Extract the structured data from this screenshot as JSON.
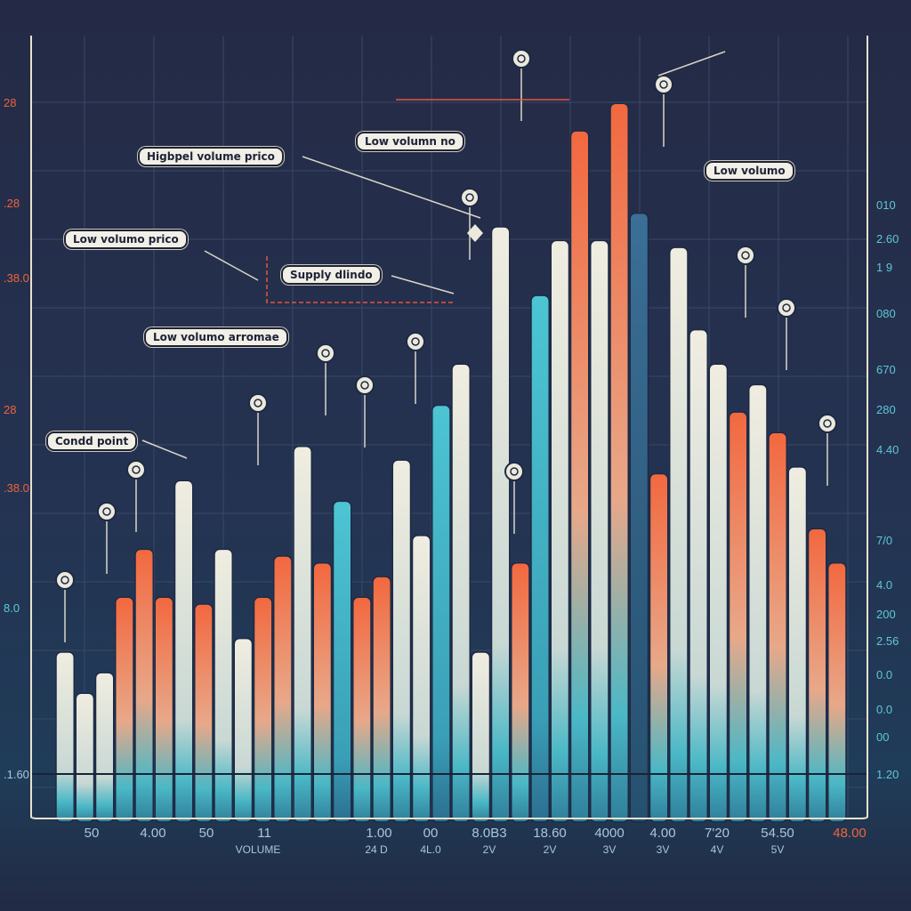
{
  "chart_data": {
    "type": "bar",
    "title": "",
    "xlabel": "VOLUME",
    "ylabel": "",
    "ylim": [
      0,
      110
    ],
    "grid": true,
    "values": [
      24,
      18,
      21,
      32,
      39,
      32,
      49,
      31,
      39,
      26,
      32,
      38,
      54,
      37,
      46,
      32,
      35,
      52,
      41,
      60,
      66,
      24,
      86,
      37,
      76,
      84,
      100,
      84,
      104,
      88,
      50,
      83,
      71,
      66,
      59,
      63,
      56,
      51,
      42,
      37
    ],
    "colors": [
      "c",
      "c",
      "c",
      "o",
      "o",
      "o",
      "c",
      "o",
      "c",
      "c",
      "o",
      "o",
      "c",
      "o",
      "t",
      "o",
      "o",
      "c",
      "c",
      "t",
      "c",
      "c",
      "c",
      "o",
      "t",
      "c",
      "o",
      "c",
      "o",
      "b",
      "o",
      "c",
      "c",
      "c",
      "o",
      "c",
      "o",
      "c",
      "o",
      "o"
    ],
    "x_tick_labels": [
      "50",
      "4.00",
      "50",
      "11",
      "1.00",
      "00",
      "8.0B3",
      "18.60",
      "4000",
      "4.00",
      "7'20",
      "54.50",
      "48.00"
    ],
    "x_tick_sublabels": [
      "VOLUME",
      "24 D",
      "4L.0",
      "2V",
      "2V",
      "3V",
      "3V",
      "4V",
      "5V"
    ],
    "y_left_tick_labels": [
      "28",
      ".28",
      ".38.0",
      "28",
      ".38.0",
      "8.0",
      ".1.60"
    ],
    "y_right_tick_labels": [
      "010",
      "2.60",
      "1 9",
      "080",
      "670",
      "280",
      "4.40",
      "7/0",
      "4.0",
      "200",
      "2.56",
      "0.0",
      "0.0",
      "00",
      "1.20"
    ],
    "annotations": [
      "Higbpel volume prico",
      "Low volumn no",
      "Low volumo",
      "Low volumo prico",
      "Supply dlindo",
      "Low volumo arromae",
      "Condd point"
    ]
  },
  "palette": {
    "cream": "#ebe8da",
    "orange": "#f2683f",
    "teal": "#45bccb",
    "blue": "#2f5f82",
    "axis": "#e9e2cf",
    "accent": "#e8553a"
  }
}
